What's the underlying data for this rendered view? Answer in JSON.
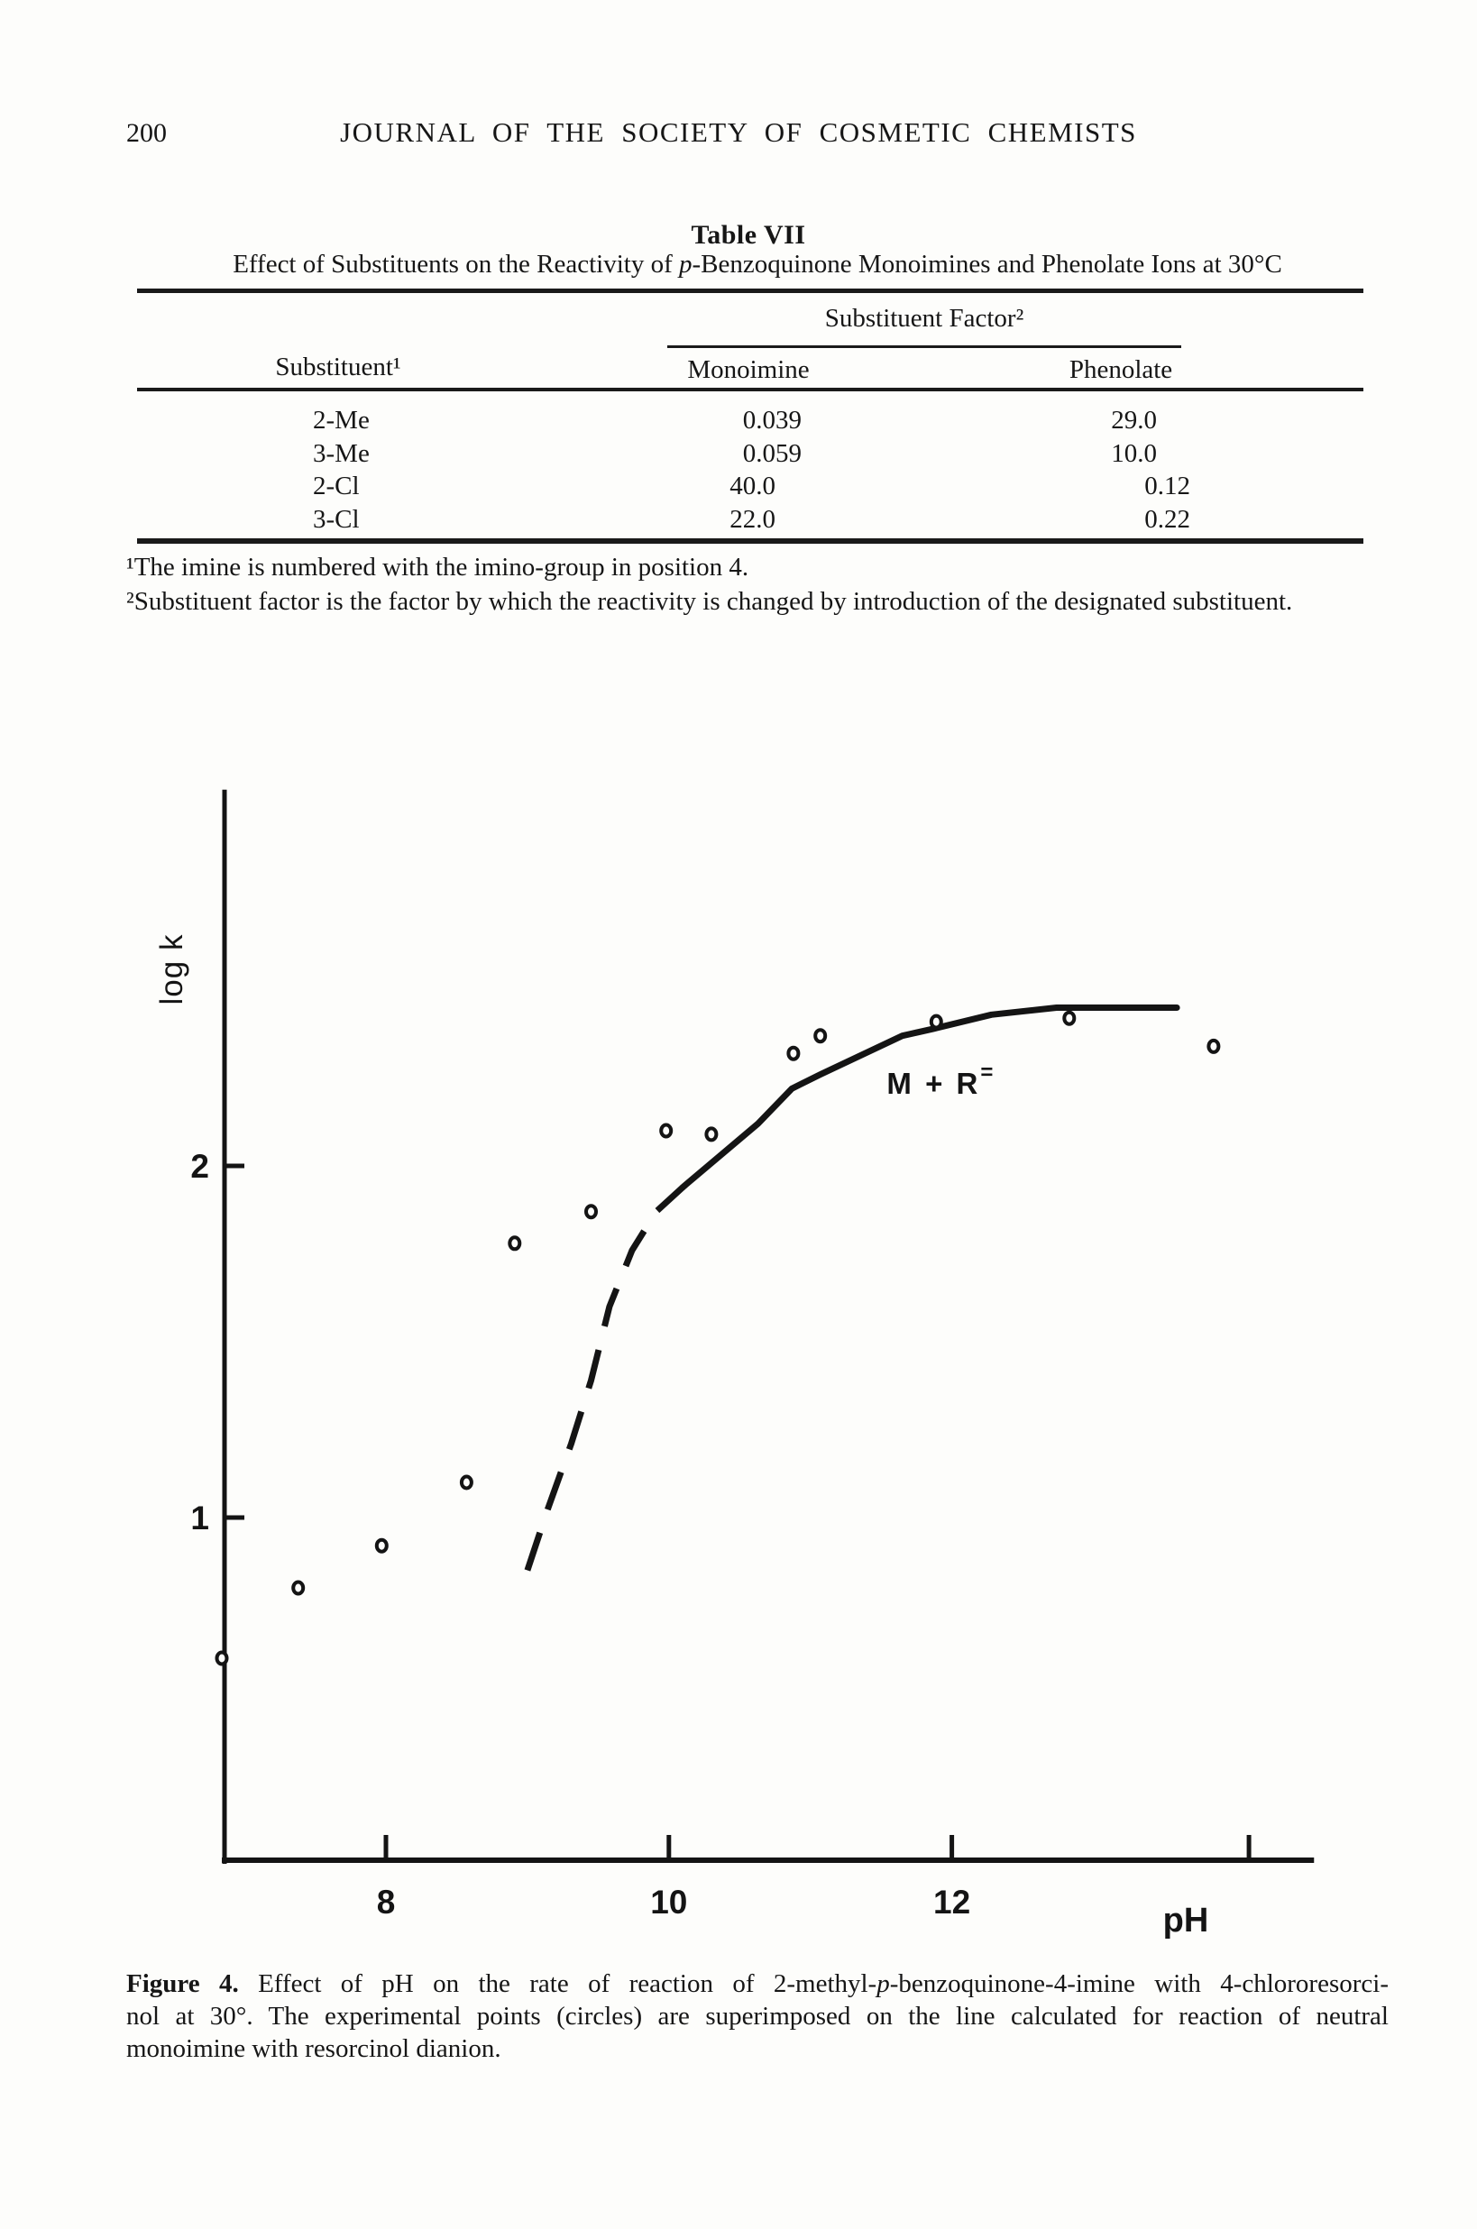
{
  "page": {
    "number": "200",
    "journal_title": "JOURNAL OF THE SOCIETY OF COSMETIC CHEMISTS"
  },
  "table": {
    "title": "Table VII",
    "subtitle_segs": [
      {
        "t": "Effect of Substituents on the Reactivity of "
      },
      {
        "t": "p",
        "i": 1
      },
      {
        "t": "-Benzoquinone Monoimines and Phenolate Ions at 30°C"
      }
    ],
    "col_group_header": "Substituent Factor²",
    "columns": {
      "substituent": "Substituent¹",
      "monoimine": "Monoimine",
      "phenolate": "Phenolate"
    },
    "rows": [
      {
        "substituent": "2-Me",
        "monoimine": "0.039",
        "phenolate": "29.0"
      },
      {
        "substituent": "3-Me",
        "monoimine": "0.059",
        "phenolate": "10.0"
      },
      {
        "substituent": "2-Cl",
        "monoimine": "40.0",
        "phenolate": "0.12"
      },
      {
        "substituent": "3-Cl",
        "monoimine": "22.0",
        "phenolate": "0.22"
      }
    ],
    "footnote1": "¹The imine is numbered with the imino-group in position 4.",
    "footnote2": "²Substituent factor is the factor by which the reactivity is changed by introduction of the designated substituent."
  },
  "chart_data": {
    "type": "scatter",
    "title": "",
    "xlabel": "pH",
    "ylabel": "log k",
    "xlim": [
      6.85,
      14.56
    ],
    "ylim": [
      0.03,
      3.07
    ],
    "grid": false,
    "marker": "open-circle",
    "x_ticks": [
      {
        "value": 8,
        "label": "8"
      },
      {
        "value": 10,
        "label": "10"
      },
      {
        "value": 12,
        "label": "12"
      },
      {
        "value": 14.1,
        "label": ""
      }
    ],
    "y_ticks": [
      {
        "value": 2,
        "label": "2"
      },
      {
        "value": 1,
        "label": "1"
      }
    ],
    "points": [
      {
        "ph": 6.84,
        "logk": 0.6
      },
      {
        "ph": 7.38,
        "logk": 0.8
      },
      {
        "ph": 7.97,
        "logk": 0.92
      },
      {
        "ph": 8.57,
        "logk": 1.1
      },
      {
        "ph": 8.91,
        "logk": 1.78
      },
      {
        "ph": 9.45,
        "logk": 1.87
      },
      {
        "ph": 9.98,
        "logk": 2.1
      },
      {
        "ph": 10.3,
        "logk": 2.09
      },
      {
        "ph": 10.88,
        "logk": 2.32
      },
      {
        "ph": 11.07,
        "logk": 2.37
      },
      {
        "ph": 11.89,
        "logk": 2.41
      },
      {
        "ph": 12.83,
        "logk": 2.42
      },
      {
        "ph": 13.85,
        "logk": 2.34
      }
    ],
    "calculated_line": {
      "dashed": [
        [
          9.0,
          0.85
        ],
        [
          9.14,
          1.02
        ],
        [
          9.31,
          1.21
        ],
        [
          9.45,
          1.39
        ],
        [
          9.58,
          1.6
        ],
        [
          9.74,
          1.76
        ],
        [
          9.91,
          1.87
        ],
        [
          10.1,
          1.94
        ]
      ],
      "solid": [
        [
          10.1,
          1.94
        ],
        [
          10.63,
          2.12
        ],
        [
          10.87,
          2.22
        ],
        [
          11.07,
          2.26
        ],
        [
          11.65,
          2.37
        ],
        [
          11.87,
          2.39
        ],
        [
          12.28,
          2.43
        ],
        [
          12.74,
          2.45
        ],
        [
          13.17,
          2.45
        ],
        [
          13.59,
          2.45
        ]
      ]
    },
    "annotation": {
      "text_main": "M + R",
      "text_sup": "=",
      "ph": 11.54,
      "logk": 2.205
    },
    "legend_position": "none"
  },
  "figure_caption": {
    "lines": [
      {
        "segs": [
          {
            "t": "Figure 4.",
            "b": 1
          },
          {
            "t": "  Effect of pH on the rate of reaction of 2-methyl-"
          },
          {
            "t": "p",
            "i": 1
          },
          {
            "t": "-benzoquinone-4-imine with 4-chlororesorci-"
          }
        ]
      },
      {
        "segs": [
          {
            "t": "nol at 30°. The experimental points (circles) are superimposed on the line calculated for reaction of neutral"
          }
        ]
      },
      {
        "segs": [
          {
            "t": "monoimine with resorcinol dianion."
          }
        ]
      }
    ]
  }
}
